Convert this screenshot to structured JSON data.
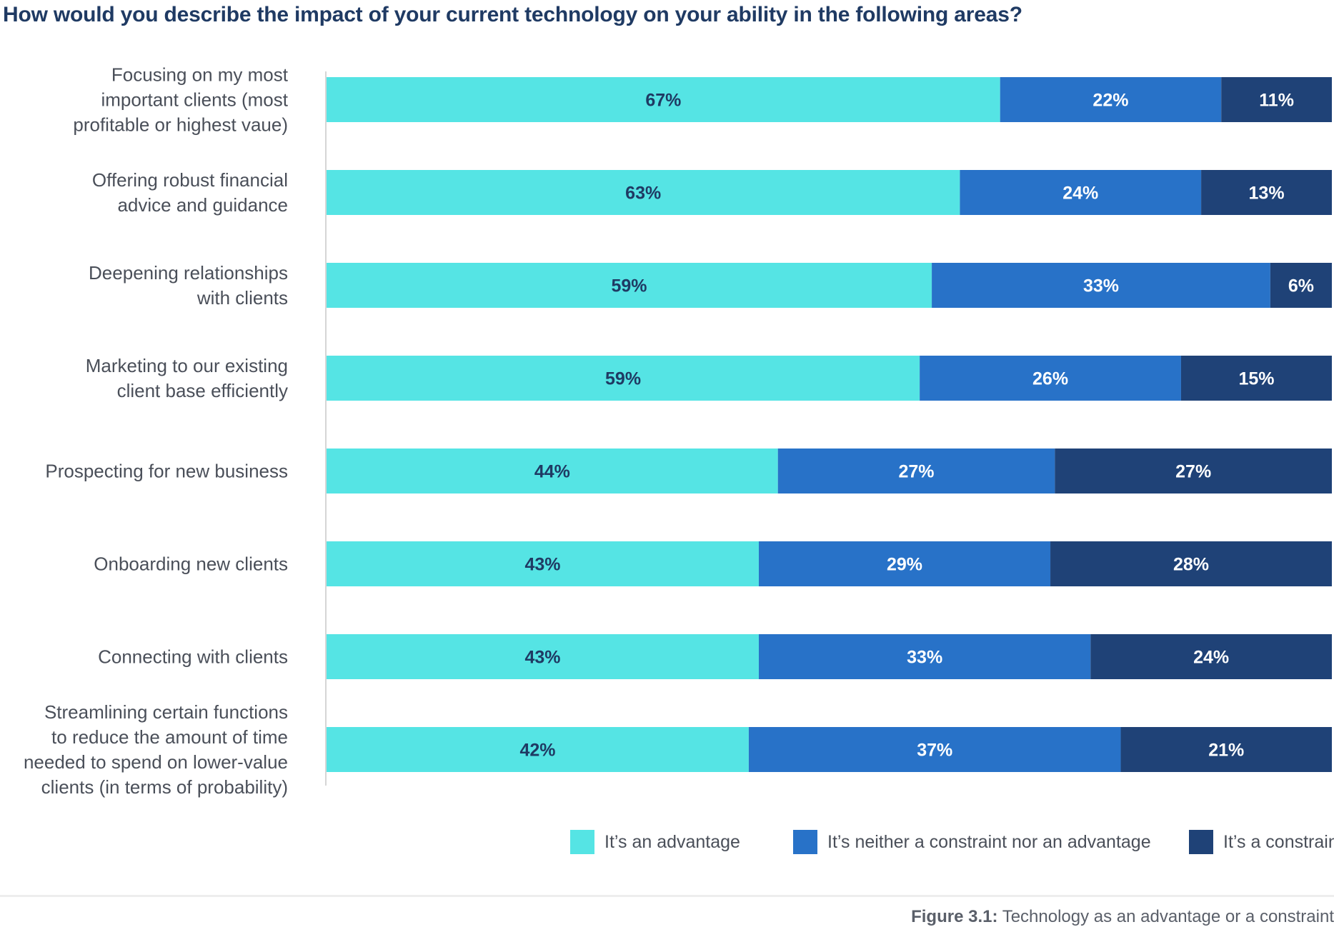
{
  "chart_data": {
    "type": "bar",
    "orientation": "horizontal",
    "stacked": true,
    "title": "How would you describe the impact of your current technology on your ability in the following areas?",
    "categories": [
      [
        "Focusing on my most",
        "important clients (most",
        "profitable or highest vaue)"
      ],
      [
        "Offering robust financial",
        "advice and guidance"
      ],
      [
        "Deepening relationships",
        "with clients"
      ],
      [
        "Marketing to our existing",
        "client base efficiently"
      ],
      [
        "Prospecting for new business"
      ],
      [
        "Onboarding new clients"
      ],
      [
        "Connecting with clients"
      ],
      [
        "Streamlining certain functions",
        "to reduce the amount of time",
        "needed to spend on lower-value",
        "clients (in terms of probability)"
      ]
    ],
    "series": [
      {
        "name": "It’s an advantage",
        "color": "#55e4e4",
        "label_color": "#1f3a63",
        "values": [
          67,
          63,
          59,
          59,
          44,
          43,
          43,
          42
        ]
      },
      {
        "name": "It’s neither a constraint nor an advantage",
        "color": "#2872c8",
        "label_color": "#ffffff",
        "values": [
          22,
          24,
          33,
          26,
          27,
          29,
          33,
          37
        ]
      },
      {
        "name": "It’s a constraint",
        "color": "#1f4277",
        "label_color": "#ffffff",
        "values": [
          11,
          13,
          6,
          15,
          27,
          28,
          24,
          21
        ]
      }
    ],
    "value_suffix": "%",
    "xlim": [
      0,
      100
    ],
    "legend_position": "bottom-right"
  },
  "caption": {
    "label": "Figure 3.1:",
    "text": " Technology as an advantage or a constraint"
  }
}
